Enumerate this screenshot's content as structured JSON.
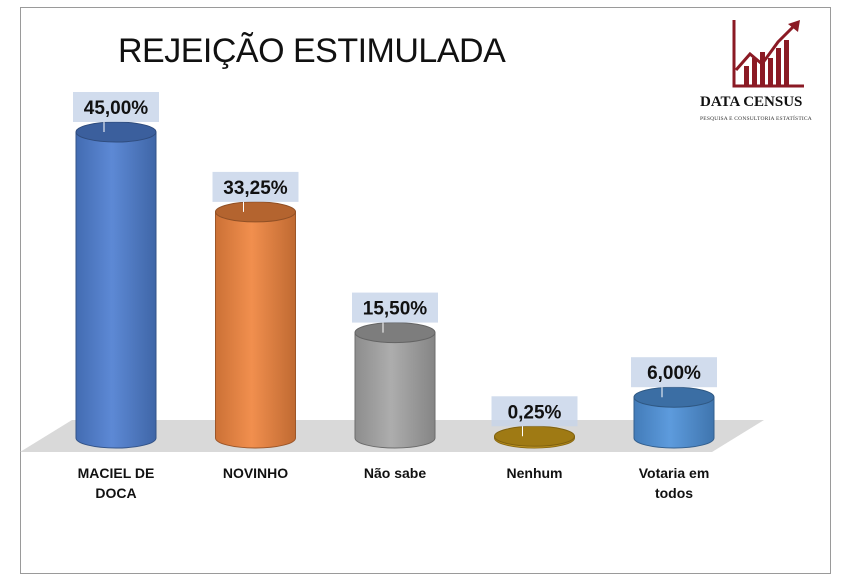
{
  "brand": {
    "name": "DATA CENSUS",
    "tagline": "PESQUISA E CONSULTORIA ESTATÍSTICA",
    "logo_color": "#8b1a24"
  },
  "chart_data": {
    "type": "bar",
    "title": "REJEIÇÃO ESTIMULADA",
    "xlabel": "",
    "ylabel": "",
    "ylim": [
      0,
      45
    ],
    "grid": false,
    "legend": "none",
    "categories": [
      [
        "MACIEL DE",
        "DOCA"
      ],
      [
        "NOVINHO"
      ],
      [
        "Não sabe"
      ],
      [
        "Nenhum"
      ],
      [
        "Votaria em",
        "todos"
      ]
    ],
    "values": [
      45.0,
      33.25,
      15.5,
      0.25,
      6.0
    ],
    "value_labels": [
      "45,00%",
      "33,25%",
      "15,50%",
      "0,25%",
      "6,00%"
    ],
    "colors": [
      "#4f7fd1",
      "#f0853f",
      "#a6a6a6",
      "#d4a21a",
      "#4f92da"
    ]
  }
}
